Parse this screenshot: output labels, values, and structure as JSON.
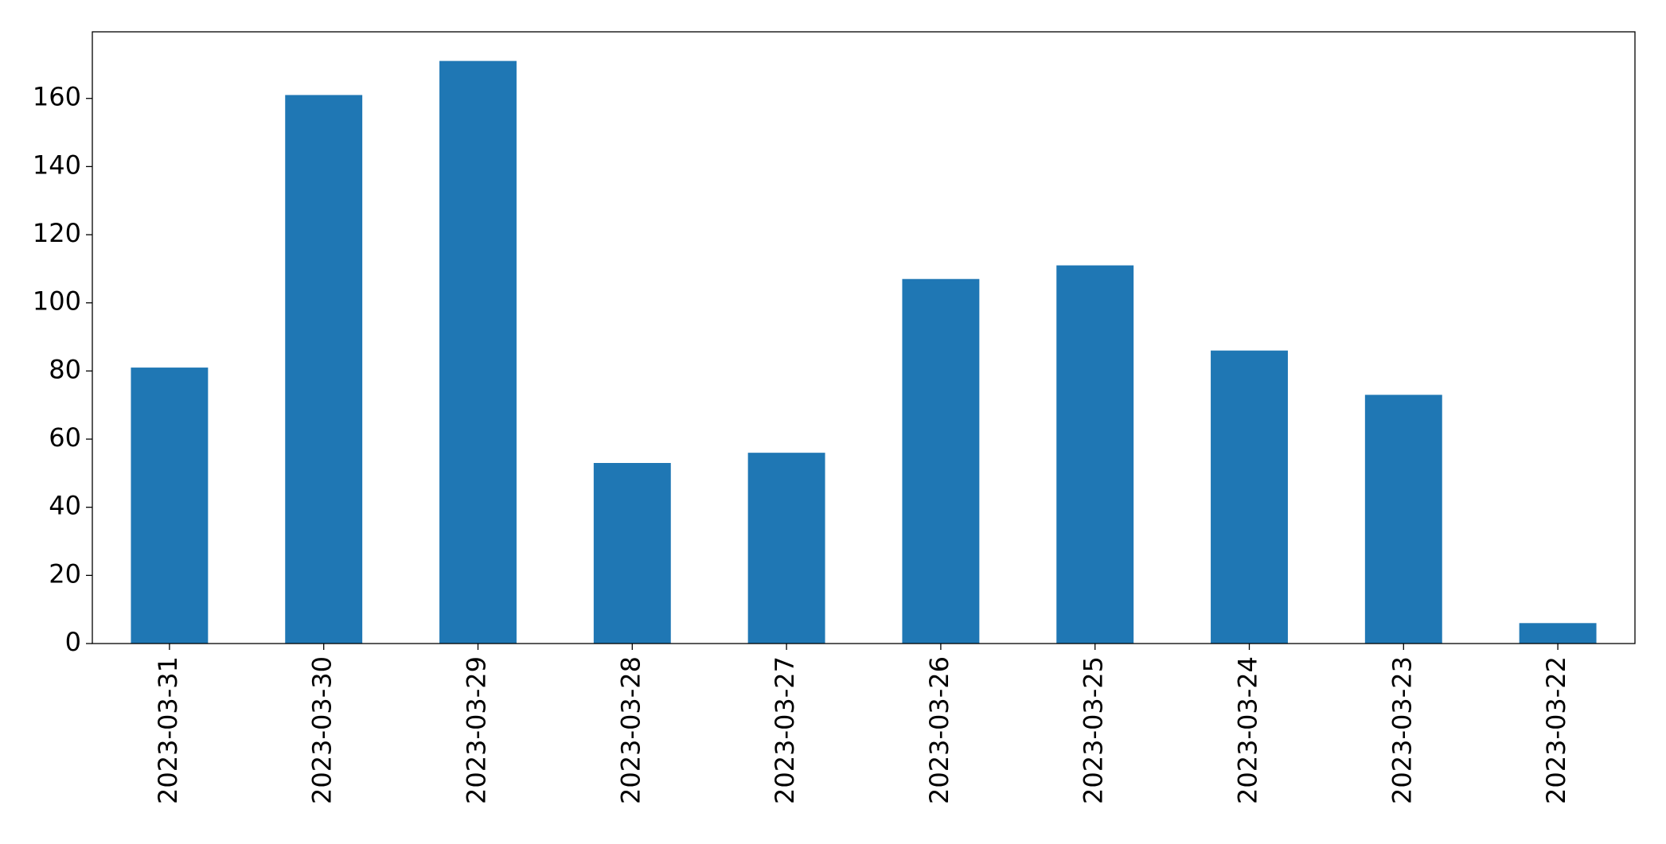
{
  "chart_data": {
    "type": "bar",
    "categories": [
      "2023-03-31",
      "2023-03-30",
      "2023-03-29",
      "2023-03-28",
      "2023-03-27",
      "2023-03-26",
      "2023-03-25",
      "2023-03-24",
      "2023-03-23",
      "2023-03-22"
    ],
    "values": [
      81,
      161,
      171,
      53,
      56,
      107,
      111,
      86,
      73,
      6
    ],
    "color": "#1f77b4",
    "ylim": [
      0,
      179.55
    ],
    "yticks": [
      0,
      20,
      40,
      60,
      80,
      100,
      120,
      140,
      160
    ],
    "grid": false
  }
}
